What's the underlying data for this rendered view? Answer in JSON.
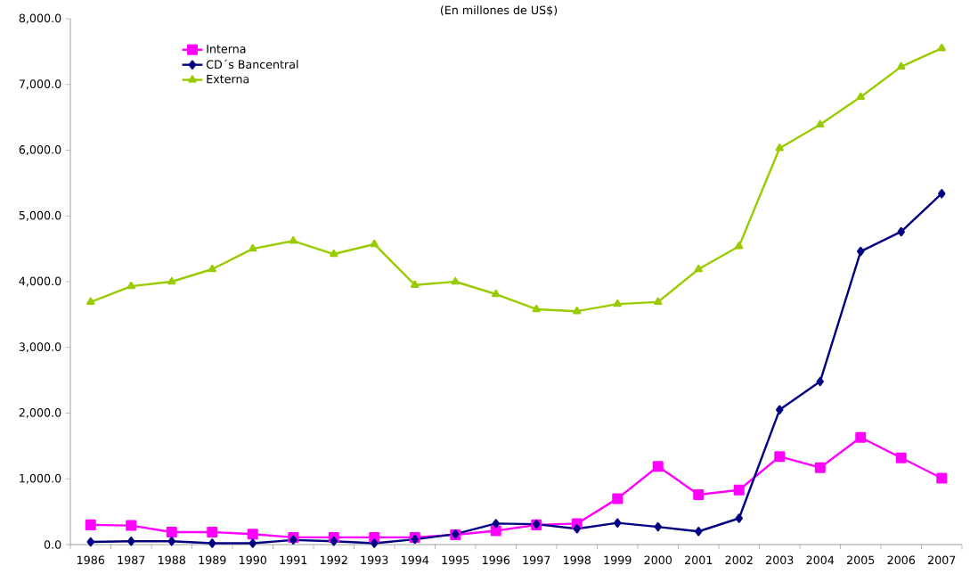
{
  "chart_data": {
    "type": "line",
    "title": "(En millones de US$)",
    "categories": [
      "1986",
      "1987",
      "1988",
      "1989",
      "1990",
      "1991",
      "1992",
      "1993",
      "1994",
      "1995",
      "1996",
      "1997",
      "1998",
      "1999",
      "2000",
      "2001",
      "2002",
      "2003",
      "2004",
      "2005",
      "2006",
      "2007"
    ],
    "series": [
      {
        "name": "Interna",
        "color": "#ff00ff",
        "marker": "square",
        "values": [
          300,
          290,
          190,
          190,
          160,
          110,
          110,
          110,
          110,
          150,
          210,
          300,
          320,
          700,
          1190,
          760,
          830,
          1340,
          1170,
          1630,
          1320,
          1010
        ]
      },
      {
        "name": "CD´s Bancentral",
        "color": "#000080",
        "marker": "diamond",
        "values": [
          40,
          50,
          50,
          20,
          20,
          70,
          50,
          20,
          80,
          160,
          320,
          310,
          240,
          330,
          270,
          200,
          400,
          2050,
          2480,
          4460,
          4760,
          5340
        ]
      },
      {
        "name": "Externa",
        "color": "#99cc00",
        "marker": "triangle",
        "values": [
          3690,
          3930,
          4000,
          4190,
          4500,
          4620,
          4420,
          4570,
          3950,
          4000,
          3810,
          3580,
          3550,
          3660,
          3690,
          4190,
          4540,
          6030,
          6390,
          6810,
          7270,
          7550
        ]
      }
    ],
    "ylim": [
      0,
      8000
    ],
    "yticks": [
      {
        "value": 0,
        "label": "0.0"
      },
      {
        "value": 1000,
        "label": "1,000.0"
      },
      {
        "value": 2000,
        "label": "2,000.0"
      },
      {
        "value": 3000,
        "label": "3,000.0"
      },
      {
        "value": 4000,
        "label": "4,000.0"
      },
      {
        "value": 5000,
        "label": "5,000.0"
      },
      {
        "value": 6000,
        "label": "6,000.0"
      },
      {
        "value": 7000,
        "label": "7,000.0"
      },
      {
        "value": 8000,
        "label": "8,000.0"
      }
    ],
    "grid": false,
    "legend": "top left",
    "line_style": "solid"
  }
}
